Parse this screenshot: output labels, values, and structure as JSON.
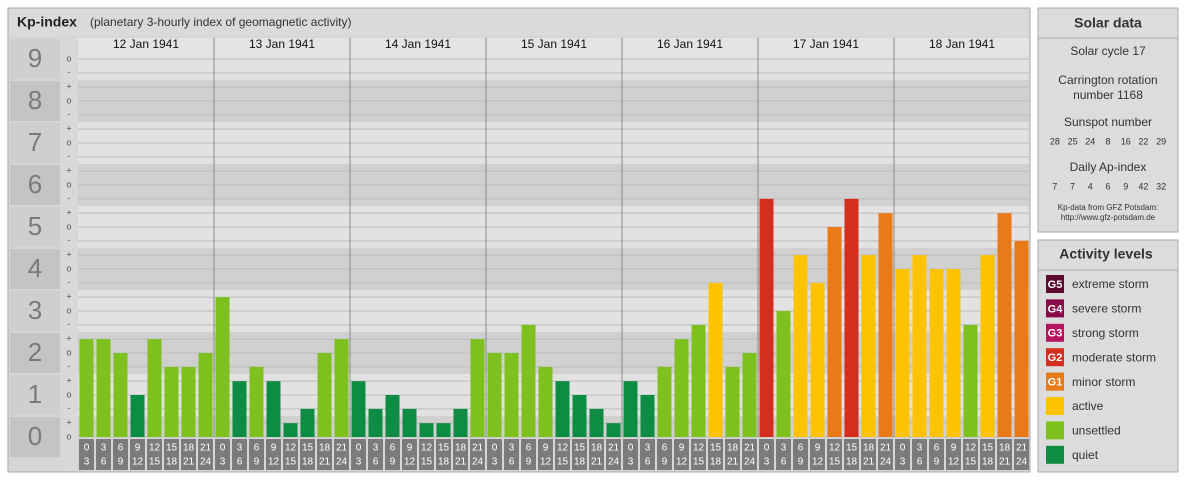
{
  "chart_data": {
    "type": "bar",
    "title": "Kp-index",
    "subtitle": "(planetary 3-hourly index of geomagnetic activity)",
    "categories": [
      "12 Jan 1941",
      "13 Jan 1941",
      "14 Jan 1941",
      "15 Jan 1941",
      "16 Jan 1941",
      "17 Jan 1941",
      "18 Jan 1941"
    ],
    "intervals": [
      [
        "0",
        "3"
      ],
      [
        "3",
        "6"
      ],
      [
        "6",
        "9"
      ],
      [
        "9",
        "12"
      ],
      [
        "12",
        "15"
      ],
      [
        "15",
        "18"
      ],
      [
        "18",
        "21"
      ],
      [
        "21",
        "24"
      ]
    ],
    "values": [
      [
        2.33,
        2.33,
        2.0,
        1.0,
        2.33,
        1.67,
        1.67,
        2.0
      ],
      [
        3.33,
        1.33,
        1.67,
        1.33,
        0.33,
        0.67,
        2.0,
        2.33
      ],
      [
        1.33,
        0.67,
        1.0,
        0.67,
        0.33,
        0.33,
        0.67,
        2.33
      ],
      [
        2.0,
        2.0,
        2.67,
        1.67,
        1.33,
        1.0,
        0.67,
        0.33
      ],
      [
        1.33,
        1.0,
        1.67,
        2.33,
        2.67,
        3.67,
        1.67,
        2.0
      ],
      [
        5.67,
        3.0,
        4.33,
        3.67,
        5.0,
        5.67,
        4.33,
        5.33
      ],
      [
        4.0,
        4.33,
        4.0,
        4.0,
        2.67,
        4.33,
        5.33,
        4.67
      ]
    ],
    "colors": [
      [
        "#7dc11e",
        "#7dc11e",
        "#7dc11e",
        "#0f8c44",
        "#7dc11e",
        "#7dc11e",
        "#7dc11e",
        "#7dc11e"
      ],
      [
        "#7dc11e",
        "#0f8c44",
        "#7dc11e",
        "#0f8c44",
        "#0f8c44",
        "#0f8c44",
        "#7dc11e",
        "#7dc11e"
      ],
      [
        "#0f8c44",
        "#0f8c44",
        "#0f8c44",
        "#0f8c44",
        "#0f8c44",
        "#0f8c44",
        "#0f8c44",
        "#7dc11e"
      ],
      [
        "#7dc11e",
        "#7dc11e",
        "#7dc11e",
        "#7dc11e",
        "#0f8c44",
        "#0f8c44",
        "#0f8c44",
        "#0f8c44"
      ],
      [
        "#0f8c44",
        "#0f8c44",
        "#7dc11e",
        "#7dc11e",
        "#7dc11e",
        "#fdc300",
        "#7dc11e",
        "#7dc11e"
      ],
      [
        "#d42f1e",
        "#7dc11e",
        "#fdc300",
        "#fdc300",
        "#ea7a15",
        "#d42f1e",
        "#fdc300",
        "#ea7a15"
      ],
      [
        "#fdc300",
        "#fdc300",
        "#fdc300",
        "#fdc300",
        "#7dc11e",
        "#fdc300",
        "#ea7a15",
        "#ea7a15"
      ]
    ],
    "ylim": [
      -0.5,
      9.5
    ],
    "yticks": [
      0,
      1,
      2,
      3,
      4,
      5,
      6,
      7,
      8,
      9
    ],
    "minor_yticks": [
      {
        "value": 0,
        "label": "o"
      },
      {
        "value": 0.33,
        "label": "+"
      },
      {
        "value": 0.67,
        "label": "-"
      },
      {
        "value": 1,
        "label": "o"
      },
      {
        "value": 1.33,
        "label": "+"
      },
      {
        "value": 1.67,
        "label": "-"
      },
      {
        "value": 2,
        "label": "o"
      },
      {
        "value": 2.33,
        "label": "+"
      },
      {
        "value": 2.67,
        "label": "-"
      },
      {
        "value": 3,
        "label": "o"
      },
      {
        "value": 3.33,
        "label": "+"
      },
      {
        "value": 3.67,
        "label": "-"
      },
      {
        "value": 4,
        "label": "o"
      },
      {
        "value": 4.33,
        "label": "+"
      },
      {
        "value": 4.67,
        "label": "-"
      },
      {
        "value": 5,
        "label": "o"
      },
      {
        "value": 5.33,
        "label": "+"
      },
      {
        "value": 5.67,
        "label": "-"
      },
      {
        "value": 6,
        "label": "o"
      },
      {
        "value": 6.33,
        "label": "+"
      },
      {
        "value": 6.67,
        "label": "-"
      },
      {
        "value": 7,
        "label": "o"
      },
      {
        "value": 7.33,
        "label": "+"
      },
      {
        "value": 7.67,
        "label": "-"
      },
      {
        "value": 8,
        "label": "o"
      },
      {
        "value": 8.33,
        "label": "+"
      },
      {
        "value": 8.67,
        "label": "-"
      },
      {
        "value": 9,
        "label": "o"
      }
    ],
    "grid": true
  },
  "solar_data": {
    "title": "Solar data",
    "cycle": "Solar cycle 17",
    "carrington": [
      "Carrington rotation",
      "number 1168"
    ],
    "sunspot_title": "Sunspot number",
    "sunspot_numbers": [
      "28",
      "25",
      "24",
      "8",
      "16",
      "22",
      "29"
    ],
    "ap_title": "Daily Ap-index",
    "ap_values": [
      "7",
      "7",
      "4",
      "6",
      "9",
      "42",
      "32"
    ],
    "source": [
      "Kp-data from GFZ Potsdam:",
      "http://www.gfz-potsdam.de"
    ]
  },
  "activity_levels": {
    "title": "Activity levels",
    "items": [
      {
        "badge": "G5",
        "label": "extreme storm",
        "color": "#5a0a30"
      },
      {
        "badge": "G4",
        "label": "severe storm",
        "color": "#8a0b4a"
      },
      {
        "badge": "G3",
        "label": "strong storm",
        "color": "#b8135f"
      },
      {
        "badge": "G2",
        "label": "moderate storm",
        "color": "#d42f1e"
      },
      {
        "badge": "G1",
        "label": "minor storm",
        "color": "#ea7a15"
      },
      {
        "label": "active",
        "color": "#fdc300"
      },
      {
        "label": "unsettled",
        "color": "#7dc11e"
      },
      {
        "label": "quiet",
        "color": "#0f8c44"
      }
    ]
  }
}
